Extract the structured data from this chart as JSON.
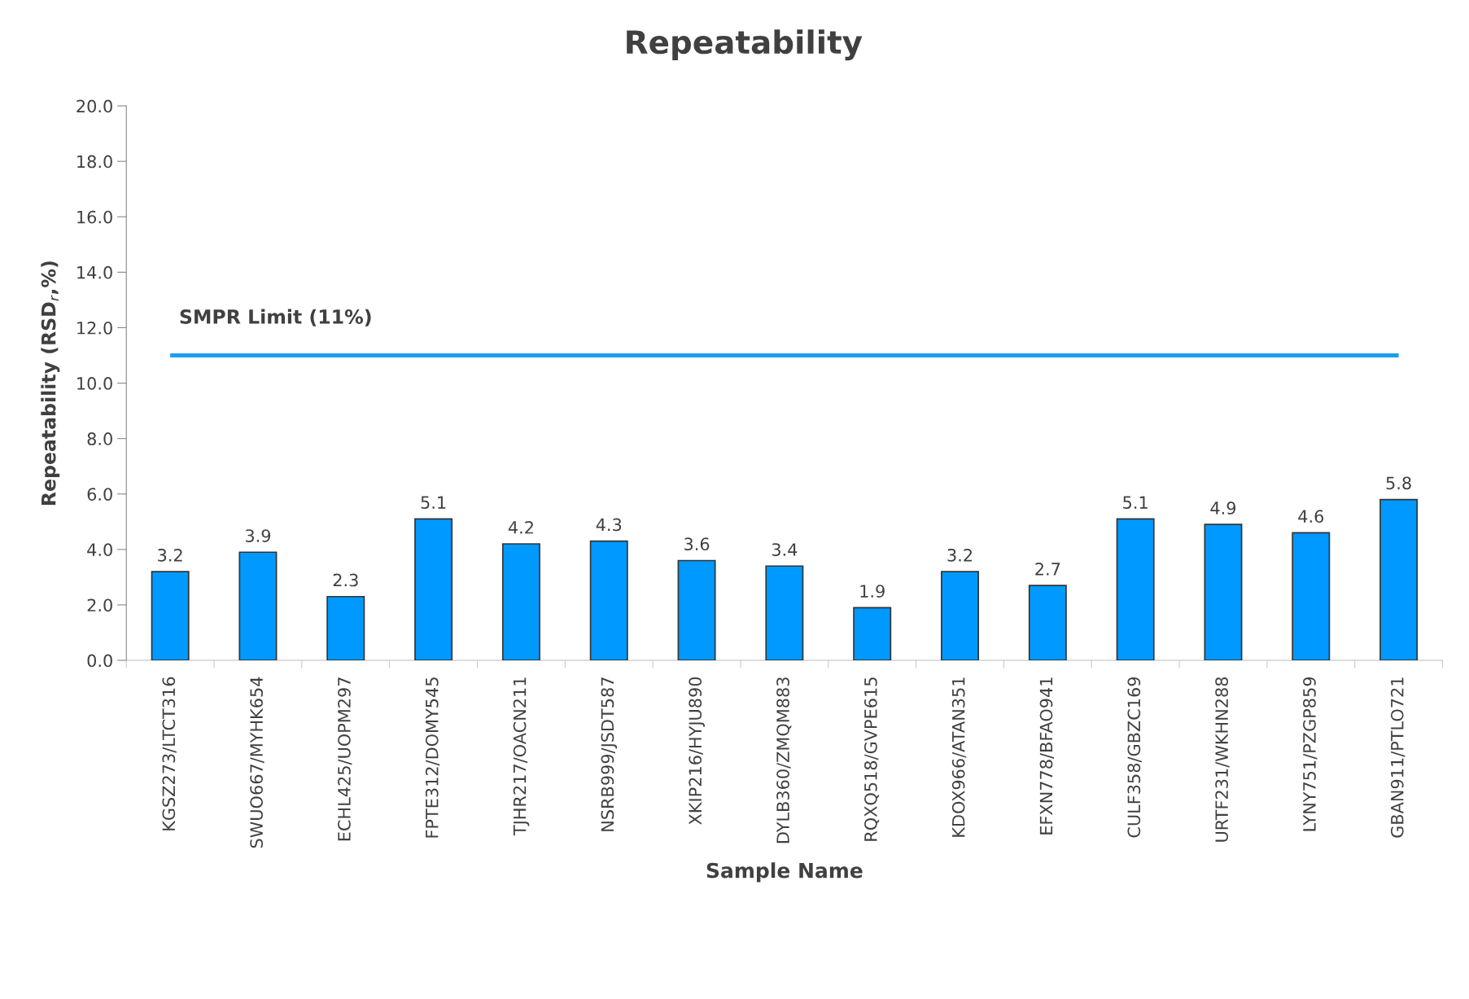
{
  "chart_data": {
    "type": "bar",
    "title": "Repeatability",
    "xlabel": "Sample Name",
    "ylabel": "Repeatability (RSD$_{r}$,%)",
    "categories": [
      "KGSZ273/LTCT316",
      "SWUO667/MYHK654",
      "ECHL425/UOPM297",
      "FPTE312/DOMY545",
      "TJHR217/OACN211",
      "NSRB999/JSDT587",
      "XKIP216/HYJU890",
      "DYLB360/ZMQM883",
      "RQXQ518/GVPE615",
      "KDOX966/ATAN351",
      "EFXN778/BFAO941",
      "CULF358/GBZC169",
      "URTF231/WKHN288",
      "LYNY751/PZGP859",
      "GBAN911/PTLO721"
    ],
    "values": [
      3.2,
      3.9,
      2.3,
      5.1,
      4.2,
      4.3,
      3.6,
      3.4,
      1.9,
      3.2,
      2.7,
      5.1,
      4.9,
      4.6,
      5.8
    ],
    "color": "#0099ff",
    "data_labels": true,
    "ylim": [
      0,
      20
    ],
    "yticks": [
      {
        "value": 0,
        "label": "0.0"
      },
      {
        "value": 2,
        "label": "2.0"
      },
      {
        "value": 4,
        "label": "4.0"
      },
      {
        "value": 6,
        "label": "6.0"
      },
      {
        "value": 8,
        "label": "8.0"
      },
      {
        "value": 10,
        "label": "10.0"
      },
      {
        "value": 12,
        "label": "12.0"
      },
      {
        "value": 14,
        "label": "14.0"
      },
      {
        "value": 16,
        "label": "16.0"
      },
      {
        "value": 18,
        "label": "18.0"
      },
      {
        "value": 20,
        "label": "20.0"
      }
    ],
    "ref_lines": [
      {
        "axis": "y",
        "value": 11,
        "label": "SMPR Limit (11%)",
        "color": "#1a9eef"
      }
    ],
    "grid": false,
    "legend": false
  }
}
